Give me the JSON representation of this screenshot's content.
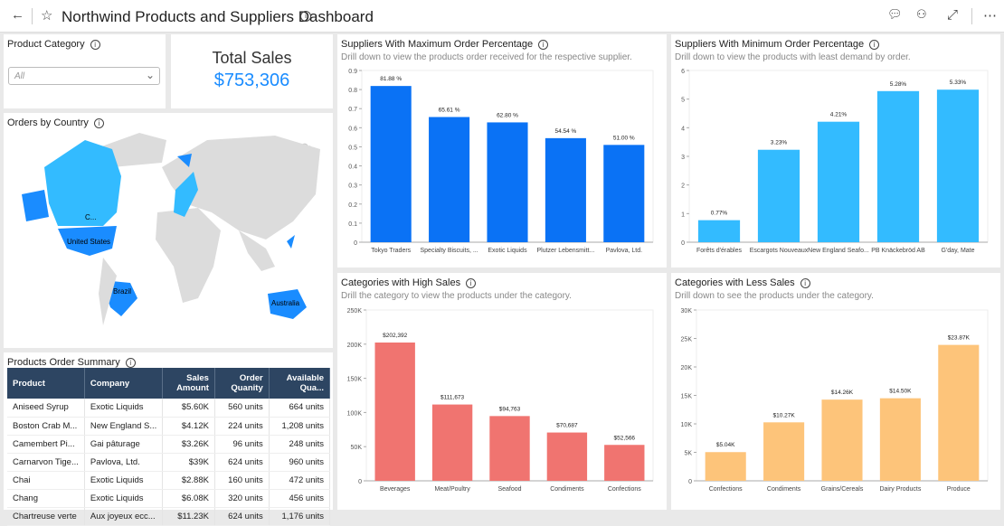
{
  "header": {
    "title": "Northwind Products and Suppliers Dashboard",
    "icons": [
      "back-arrow-icon",
      "star-icon",
      "info-icon",
      "comment-icon",
      "glasses-icon",
      "expand-icon",
      "more-icon"
    ]
  },
  "filter": {
    "label": "Product Category",
    "value": "All"
  },
  "total_sales": {
    "label": "Total Sales",
    "value": "$753,306"
  },
  "map": {
    "title": "Orders by Country",
    "labels": [
      "United States",
      "C...",
      "Brazil",
      "Australia"
    ],
    "highlight_color": "#1a8cff"
  },
  "table": {
    "title": "Products Order Summary",
    "columns": [
      "Product",
      "Company",
      "Sales Amount",
      "Order Quanity",
      "Available Qua..."
    ],
    "rows": [
      [
        "Aniseed Syrup",
        "Exotic Liquids",
        "$5.60K",
        "560 units",
        "664 units"
      ],
      [
        "Boston Crab M...",
        "New England S...",
        "$4.12K",
        "224 units",
        "1,208 units"
      ],
      [
        "Camembert Pi...",
        "Gai pâturage",
        "$3.26K",
        "96 units",
        "248 units"
      ],
      [
        "Carnarvon Tige...",
        "Pavlova, Ltd.",
        "$39K",
        "624 units",
        "960 units"
      ],
      [
        "Chai",
        "Exotic Liquids",
        "$2.88K",
        "160 units",
        "472 units"
      ],
      [
        "Chang",
        "Exotic Liquids",
        "$6.08K",
        "320 units",
        "456 units"
      ],
      [
        "Chartreuse verte",
        "Aux joyeux ecc...",
        "$11.23K",
        "624 units",
        "1,176 units"
      ]
    ]
  },
  "chart_data": [
    {
      "type": "bar",
      "title": "Suppliers With Maximum Order Percentage",
      "subtitle": "Drill down to view the products order received for the respective supplier.",
      "categories": [
        "Tokyo Traders",
        "Specialty Biscuits, ...",
        "Exotic Liquids",
        "Plutzer Lebensmitt...",
        "Pavlova, Ltd."
      ],
      "values": [
        0.8188,
        0.6561,
        0.628,
        0.5454,
        0.51
      ],
      "labels": [
        "81.88 %",
        "65.61 %",
        "62.80 %",
        "54.54 %",
        "51.00 %"
      ],
      "ylim": [
        0,
        0.9
      ],
      "ticks": [
        "0",
        "0.1",
        "0.2",
        "0.3",
        "0.4",
        "0.5",
        "0.6",
        "0.7",
        "0.8",
        "0.9"
      ],
      "color": "#0a72f5"
    },
    {
      "type": "bar",
      "title": "Suppliers With Minimum Order Percentage",
      "subtitle": "Drill down to view the products with least demand by order.",
      "categories": [
        "Forêts d'érables",
        "Escargots Nouveaux",
        "New England Seafo...",
        "PB Knäckebröd AB",
        "G'day, Mate"
      ],
      "values": [
        0.77,
        3.23,
        4.21,
        5.28,
        5.33
      ],
      "labels": [
        "0.77%",
        "3.23%",
        "4.21%",
        "5.28%",
        "5.33%"
      ],
      "ylim": [
        0,
        6
      ],
      "ticks": [
        "0",
        "1",
        "2",
        "3",
        "4",
        "5",
        "6"
      ],
      "color": "#33bbff"
    },
    {
      "type": "bar",
      "title": "Categories with High Sales",
      "subtitle": "Drill the category to view the products under the category.",
      "categories": [
        "Beverages",
        "Meat/Poultry",
        "Seafood",
        "Condiments",
        "Confections"
      ],
      "values": [
        202392,
        111673,
        94763,
        70687,
        52566
      ],
      "labels": [
        "$202,392",
        "$111,673",
        "$94,763",
        "$70,687",
        "$52,566"
      ],
      "ylim": [
        0,
        250000
      ],
      "ticks": [
        "0",
        "50K",
        "100K",
        "150K",
        "200K",
        "250K"
      ],
      "color": "#f07470"
    },
    {
      "type": "bar",
      "title": "Categories with Less Sales",
      "subtitle": "Drill down to see the products under the category.",
      "categories": [
        "Confections",
        "Condiments",
        "Grains/Cereals",
        "Dairy Products",
        "Produce"
      ],
      "values": [
        5040,
        10270,
        14260,
        14500,
        23870
      ],
      "labels": [
        "$5.04K",
        "$10.27K",
        "$14.26K",
        "$14.50K",
        "$23.87K"
      ],
      "ylim": [
        0,
        30000
      ],
      "ticks": [
        "0",
        "5K",
        "10K",
        "15K",
        "20K",
        "25K",
        "30K"
      ],
      "color": "#fdc47a"
    }
  ]
}
